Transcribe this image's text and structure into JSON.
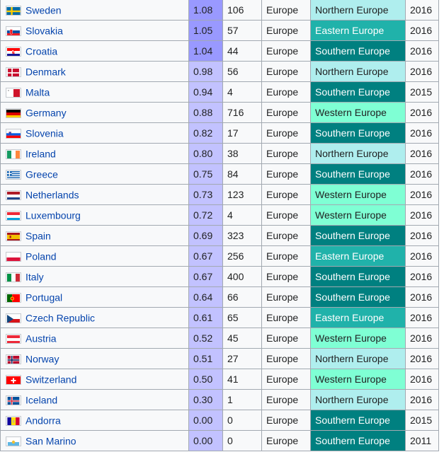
{
  "rows": [
    {
      "country": "Sweden",
      "flag": "flag-sweden-icon",
      "rate": "1.08",
      "count": "106",
      "continent": "Europe",
      "region": "Northern Europe",
      "year": "2016",
      "rate_color": "#9999ff"
    },
    {
      "country": "Slovakia",
      "flag": "flag-slovakia-icon",
      "rate": "1.05",
      "count": "57",
      "continent": "Europe",
      "region": "Eastern Europe",
      "year": "2016",
      "rate_color": "#9999ff"
    },
    {
      "country": "Croatia",
      "flag": "flag-croatia-icon",
      "rate": "1.04",
      "count": "44",
      "continent": "Europe",
      "region": "Southern Europe",
      "year": "2016",
      "rate_color": "#9999ff"
    },
    {
      "country": "Denmark",
      "flag": "flag-denmark-icon",
      "rate": "0.98",
      "count": "56",
      "continent": "Europe",
      "region": "Northern Europe",
      "year": "2016",
      "rate_color": "#c2c2ff"
    },
    {
      "country": "Malta",
      "flag": "flag-malta-icon",
      "rate": "0.94",
      "count": "4",
      "continent": "Europe",
      "region": "Southern Europe",
      "year": "2015",
      "rate_color": "#c2c2ff"
    },
    {
      "country": "Germany",
      "flag": "flag-germany-icon",
      "rate": "0.88",
      "count": "716",
      "continent": "Europe",
      "region": "Western Europe",
      "year": "2016",
      "rate_color": "#c2c2ff"
    },
    {
      "country": "Slovenia",
      "flag": "flag-slovenia-icon",
      "rate": "0.82",
      "count": "17",
      "continent": "Europe",
      "region": "Southern Europe",
      "year": "2016",
      "rate_color": "#c2c2ff"
    },
    {
      "country": "Ireland",
      "flag": "flag-ireland-icon",
      "rate": "0.80",
      "count": "38",
      "continent": "Europe",
      "region": "Northern Europe",
      "year": "2016",
      "rate_color": "#c2c2ff"
    },
    {
      "country": "Greece",
      "flag": "flag-greece-icon",
      "rate": "0.75",
      "count": "84",
      "continent": "Europe",
      "region": "Southern Europe",
      "year": "2016",
      "rate_color": "#c2c2ff"
    },
    {
      "country": "Netherlands",
      "flag": "flag-netherlands-icon",
      "rate": "0.73",
      "count": "123",
      "continent": "Europe",
      "region": "Western Europe",
      "year": "2016",
      "rate_color": "#c2c2ff"
    },
    {
      "country": "Luxembourg",
      "flag": "flag-luxembourg-icon",
      "rate": "0.72",
      "count": "4",
      "continent": "Europe",
      "region": "Western Europe",
      "year": "2016",
      "rate_color": "#c2c2ff"
    },
    {
      "country": "Spain",
      "flag": "flag-spain-icon",
      "rate": "0.69",
      "count": "323",
      "continent": "Europe",
      "region": "Southern Europe",
      "year": "2016",
      "rate_color": "#c2c2ff"
    },
    {
      "country": "Poland",
      "flag": "flag-poland-icon",
      "rate": "0.67",
      "count": "256",
      "continent": "Europe",
      "region": "Eastern Europe",
      "year": "2016",
      "rate_color": "#c2c2ff"
    },
    {
      "country": "Italy",
      "flag": "flag-italy-icon",
      "rate": "0.67",
      "count": "400",
      "continent": "Europe",
      "region": "Southern Europe",
      "year": "2016",
      "rate_color": "#c2c2ff"
    },
    {
      "country": "Portugal",
      "flag": "flag-portugal-icon",
      "rate": "0.64",
      "count": "66",
      "continent": "Europe",
      "region": "Southern Europe",
      "year": "2016",
      "rate_color": "#c2c2ff"
    },
    {
      "country": "Czech Republic",
      "flag": "flag-czech-republic-icon",
      "rate": "0.61",
      "count": "65",
      "continent": "Europe",
      "region": "Eastern Europe",
      "year": "2016",
      "rate_color": "#c2c2ff"
    },
    {
      "country": "Austria",
      "flag": "flag-austria-icon",
      "rate": "0.52",
      "count": "45",
      "continent": "Europe",
      "region": "Western Europe",
      "year": "2016",
      "rate_color": "#c2c2ff"
    },
    {
      "country": "Norway",
      "flag": "flag-norway-icon",
      "rate": "0.51",
      "count": "27",
      "continent": "Europe",
      "region": "Northern Europe",
      "year": "2016",
      "rate_color": "#c2c2ff"
    },
    {
      "country": "Switzerland",
      "flag": "flag-switzerland-icon",
      "rate": "0.50",
      "count": "41",
      "continent": "Europe",
      "region": "Western Europe",
      "year": "2016",
      "rate_color": "#c2c2ff"
    },
    {
      "country": "Iceland",
      "flag": "flag-iceland-icon",
      "rate": "0.30",
      "count": "1",
      "continent": "Europe",
      "region": "Northern Europe",
      "year": "2016",
      "rate_color": "#c2c2ff"
    },
    {
      "country": "Andorra",
      "flag": "flag-andorra-icon",
      "rate": "0.00",
      "count": "0",
      "continent": "Europe",
      "region": "Southern Europe",
      "year": "2015",
      "rate_color": "#c2c2ff"
    },
    {
      "country": "San Marino",
      "flag": "flag-san-marino-icon",
      "rate": "0.00",
      "count": "0",
      "continent": "Europe",
      "region": "Southern Europe",
      "year": "2011",
      "rate_color": "#c2c2ff"
    }
  ],
  "region_colors": {
    "Northern Europe": {
      "bg": "#afeeee",
      "fg": "#202122"
    },
    "Eastern Europe": {
      "bg": "#20b2aa",
      "fg": "#ffffff"
    },
    "Southern Europe": {
      "bg": "#008080",
      "fg": "#ffffff"
    },
    "Western Europe": {
      "bg": "#7fffd4",
      "fg": "#202122"
    }
  },
  "colors": {
    "link": "#0645ad",
    "border": "#a2a9b1",
    "cell_bg": "#f8f9fa"
  }
}
